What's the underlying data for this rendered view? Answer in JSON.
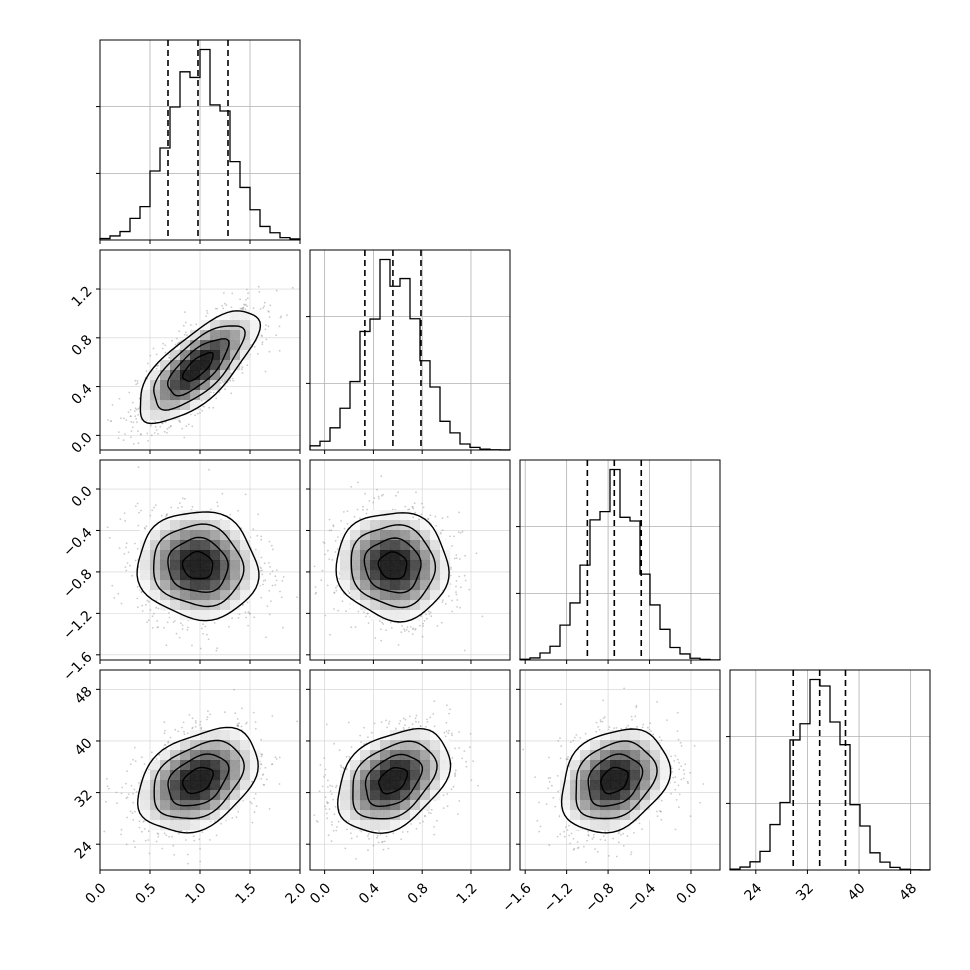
{
  "chart_data": {
    "type": "corner",
    "grid": true,
    "histogram_bins": 20,
    "quantile_lines": "dashed",
    "parameters": [
      {
        "range": [
          0.0,
          2.0
        ],
        "ticks": [
          0.0,
          0.5,
          1.0,
          1.5,
          2.0
        ],
        "tick_labels": [
          "0.0",
          "0.5",
          "1.0",
          "1.5",
          "2.0"
        ],
        "quantiles": [
          0.68,
          0.98,
          1.28
        ],
        "mean": 0.98,
        "sd": 0.3
      },
      {
        "range": [
          -0.12,
          1.52
        ],
        "ticks": [
          0.0,
          0.4,
          0.8,
          1.2
        ],
        "tick_labels": [
          "0.0",
          "0.4",
          "0.8",
          "1.2"
        ],
        "quantiles": [
          0.33,
          0.56,
          0.79
        ],
        "mean": 0.56,
        "sd": 0.23
      },
      {
        "range": [
          -1.65,
          0.28
        ],
        "ticks": [
          -1.6,
          -1.2,
          -0.8,
          -0.4,
          0.0
        ],
        "tick_labels": [
          "−1.6",
          "−1.2",
          "−0.8",
          "−0.4",
          "0.0"
        ],
        "quantiles": [
          -1.0,
          -0.74,
          -0.48
        ],
        "mean": -0.74,
        "sd": 0.26
      },
      {
        "range": [
          20.0,
          51.0
        ],
        "ticks": [
          24,
          32,
          40,
          48
        ],
        "tick_labels": [
          "24",
          "32",
          "40",
          "48"
        ],
        "quantiles": [
          29.8,
          33.9,
          37.9
        ],
        "mean": 33.9,
        "sd": 4.0
      }
    ],
    "correlations": [
      [
        1.0,
        0.72,
        -0.05,
        0.35
      ],
      [
        0.72,
        1.0,
        -0.05,
        0.35
      ],
      [
        -0.05,
        -0.05,
        1.0,
        0.25
      ],
      [
        0.35,
        0.35,
        0.25,
        1.0
      ]
    ]
  }
}
